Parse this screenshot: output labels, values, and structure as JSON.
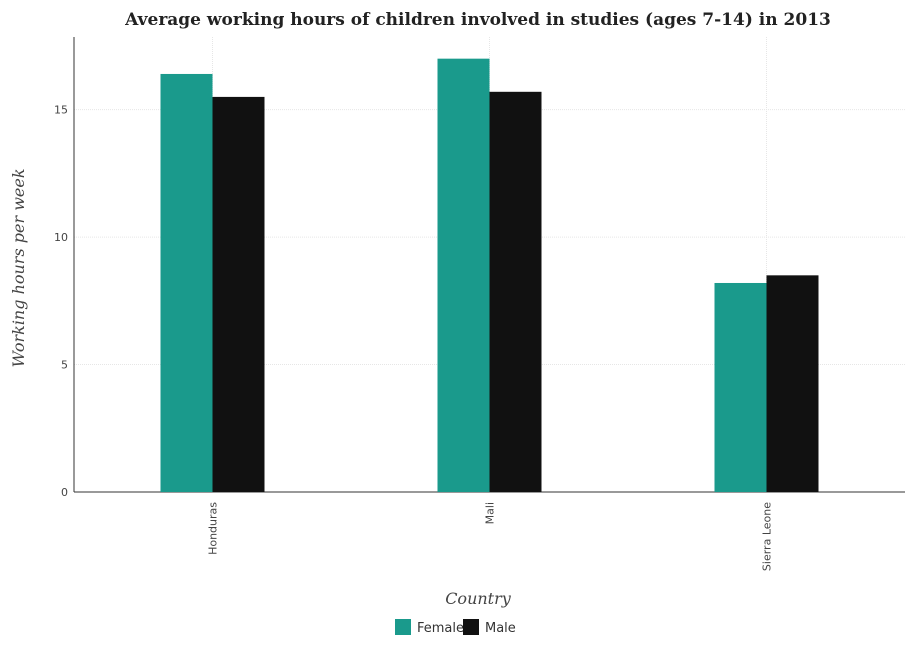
{
  "chart_data": {
    "type": "bar",
    "title": "Average working hours of children involved in studies (ages 7-14) in 2013",
    "xlabel": "Country",
    "ylabel": "Working hours per week",
    "categories": [
      "Honduras",
      "Mali",
      "Sierra Leone"
    ],
    "series": [
      {
        "name": "Female",
        "values": [
          16.4,
          17.0,
          8.2
        ],
        "color": "#1a9a8c"
      },
      {
        "name": "Male",
        "values": [
          15.5,
          15.7,
          8.5
        ],
        "color": "#111111"
      }
    ],
    "ylim": [
      0,
      17.85
    ],
    "yticks": [
      0,
      5,
      10,
      15
    ],
    "grid": true,
    "legend_position": "bottom-center"
  }
}
